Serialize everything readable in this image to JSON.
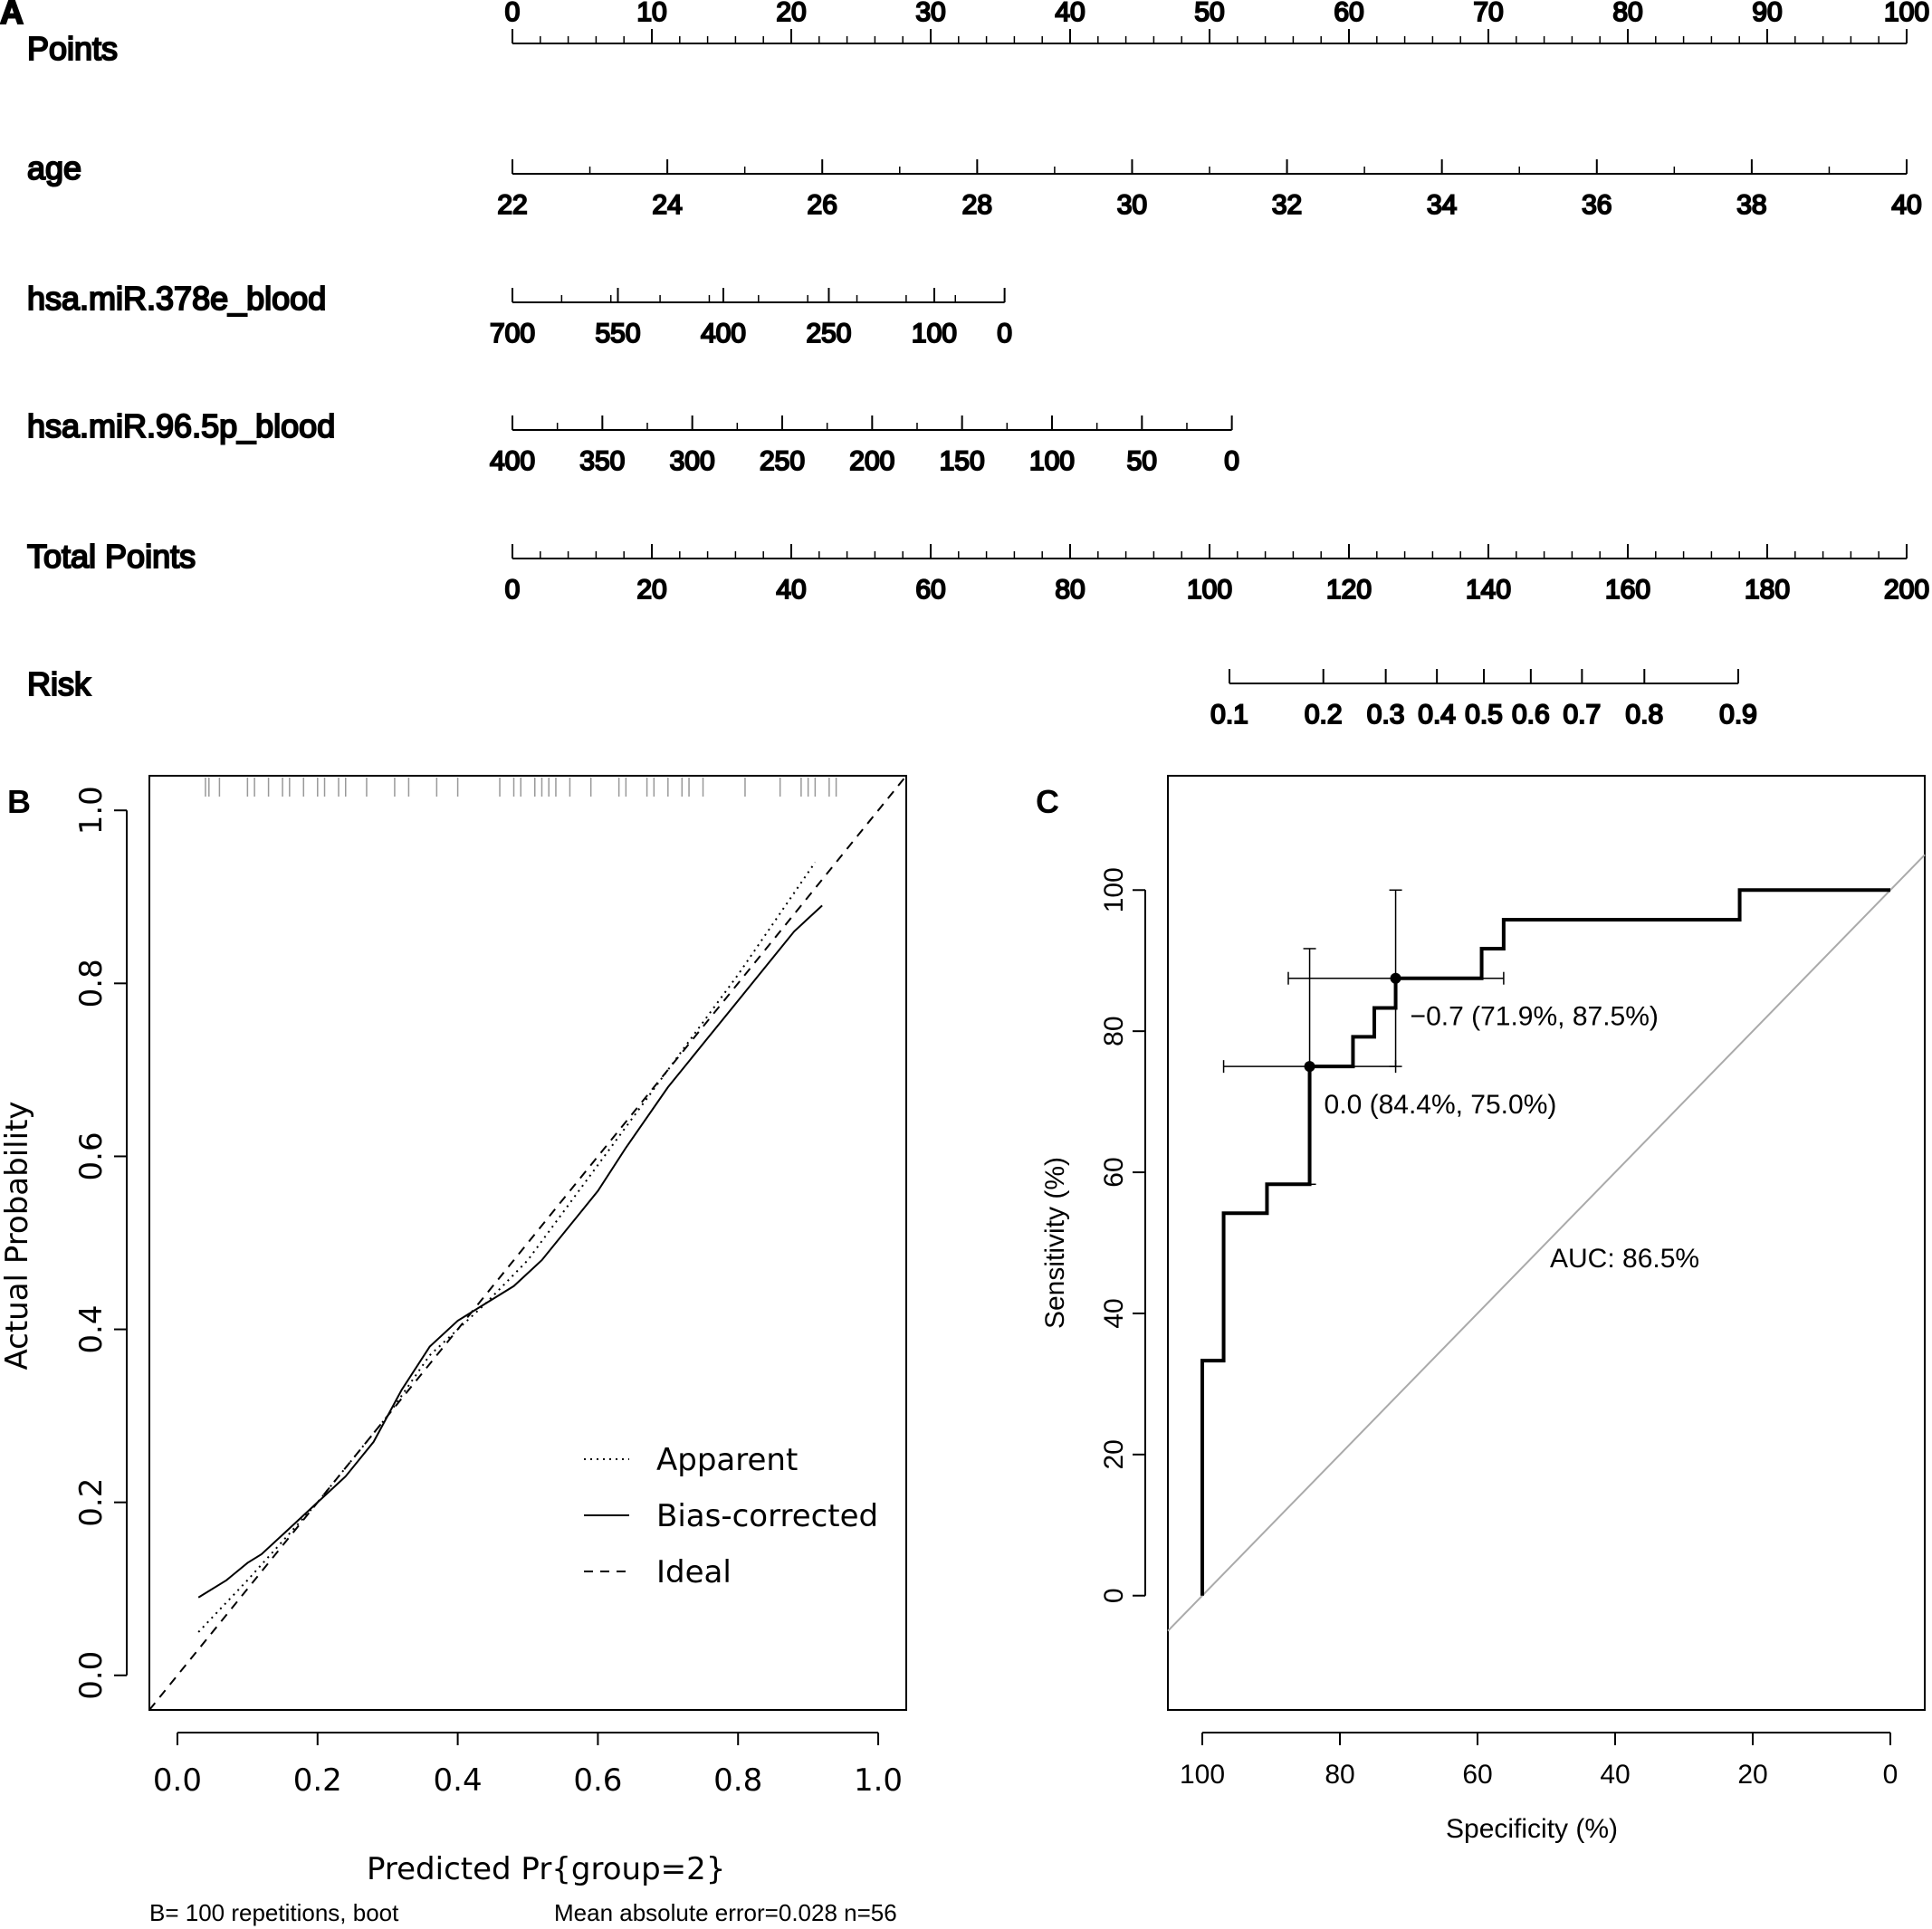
{
  "chart_data": [
    {
      "type": "nomogram",
      "panel_label": "A",
      "scales": [
        {
          "name": "Points",
          "ticks": [
            "0",
            "10",
            "20",
            "30",
            "40",
            "50",
            "60",
            "70",
            "80",
            "90",
            "100"
          ],
          "labels_above": true,
          "range": [
            0,
            100
          ]
        },
        {
          "name": "age",
          "ticks": [
            "22",
            "24",
            "26",
            "28",
            "30",
            "32",
            "34",
            "36",
            "38",
            "40"
          ],
          "range": [
            22,
            40
          ]
        },
        {
          "name": "hsa.miR.378e_blood",
          "ticks": [
            "700",
            "550",
            "400",
            "250",
            "100",
            "0"
          ],
          "range": [
            700,
            0
          ],
          "points_at_zero": 35.3
        },
        {
          "name": "hsa.miR.96.5p_blood",
          "ticks": [
            "400",
            "350",
            "300",
            "250",
            "200",
            "150",
            "100",
            "50",
            "0"
          ],
          "range": [
            400,
            0
          ],
          "points_at_zero": 51.6
        },
        {
          "name": "Total Points",
          "ticks": [
            "0",
            "20",
            "40",
            "60",
            "80",
            "100",
            "120",
            "140",
            "160",
            "180",
            "200"
          ],
          "range": [
            0,
            200
          ]
        },
        {
          "name": "Risk",
          "ticks": [
            "0.1",
            "0.2",
            "0.3",
            "0.4",
            "0.5",
            "0.6",
            "0.7",
            "0.8",
            "0.9"
          ],
          "range": [
            0.1,
            0.9
          ]
        }
      ]
    },
    {
      "type": "line",
      "panel_label": "B",
      "xlabel": "Predicted Pr{group=2}",
      "ylabel": "Actual Probability",
      "xlim": [
        -0.04,
        1.04
      ],
      "ylim": [
        -0.04,
        1.04
      ],
      "xticks": [
        "0.0",
        "0.2",
        "0.4",
        "0.6",
        "0.8",
        "1.0"
      ],
      "yticks": [
        "0.0",
        "0.2",
        "0.4",
        "0.6",
        "0.8",
        "1.0"
      ],
      "legend": [
        "Apparent",
        "Bias-corrected",
        "Ideal"
      ],
      "legend_position": "bottom-right",
      "series": [
        {
          "name": "Ideal",
          "style": "dashed",
          "x": [
            -0.04,
            1.04
          ],
          "y": [
            -0.04,
            1.04
          ]
        },
        {
          "name": "Apparent",
          "style": "dotted",
          "x": [
            0.03,
            0.1,
            0.2,
            0.3,
            0.36,
            0.44,
            0.5,
            0.6,
            0.7,
            0.8,
            0.91
          ],
          "y": [
            0.05,
            0.11,
            0.2,
            0.3,
            0.37,
            0.43,
            0.48,
            0.59,
            0.7,
            0.81,
            0.94
          ]
        },
        {
          "name": "Bias-corrected",
          "style": "solid",
          "x": [
            0.03,
            0.07,
            0.1,
            0.12,
            0.16,
            0.2,
            0.24,
            0.28,
            0.32,
            0.36,
            0.4,
            0.44,
            0.48,
            0.52,
            0.56,
            0.6,
            0.64,
            0.7,
            0.76,
            0.8,
            0.84,
            0.88,
            0.92
          ],
          "y": [
            0.09,
            0.11,
            0.13,
            0.14,
            0.17,
            0.2,
            0.23,
            0.27,
            0.33,
            0.38,
            0.41,
            0.43,
            0.45,
            0.48,
            0.52,
            0.56,
            0.61,
            0.68,
            0.74,
            0.78,
            0.82,
            0.86,
            0.89
          ]
        }
      ],
      "rug_x": [
        0.04,
        0.045,
        0.06,
        0.1,
        0.11,
        0.13,
        0.15,
        0.16,
        0.18,
        0.2,
        0.21,
        0.23,
        0.24,
        0.27,
        0.31,
        0.33,
        0.37,
        0.4,
        0.46,
        0.48,
        0.49,
        0.51,
        0.52,
        0.53,
        0.54,
        0.56,
        0.59,
        0.63,
        0.64,
        0.67,
        0.68,
        0.7,
        0.72,
        0.73,
        0.75,
        0.81,
        0.86,
        0.89,
        0.9,
        0.91,
        0.93,
        0.94
      ],
      "footer_left": "B= 100 repetitions, boot",
      "footer_right": "Mean absolute error=0.028 n=56"
    },
    {
      "type": "line",
      "panel_label": "C",
      "xlabel": "Specificity (%)",
      "ylabel": "Sensitivity (%)",
      "xlim": [
        105,
        -5
      ],
      "ylim": [
        -16.2,
        116.2
      ],
      "xticks": [
        "100",
        "80",
        "60",
        "40",
        "20",
        "0"
      ],
      "yticks": [
        "0",
        "20",
        "40",
        "60",
        "80",
        "100"
      ],
      "series": [
        {
          "name": "ROC",
          "style": "step",
          "x": [
            100,
            100,
            96.9,
            96.9,
            90.6,
            90.6,
            84.4,
            84.4,
            78.1,
            78.1,
            75,
            75,
            71.9,
            71.9,
            59.4,
            59.4,
            56.2,
            56.2,
            21.9,
            21.9,
            0
          ],
          "y": [
            0,
            33.3,
            33.3,
            54.2,
            54.2,
            58.3,
            58.3,
            75,
            75,
            79.2,
            79.2,
            83.3,
            83.3,
            87.5,
            87.5,
            91.7,
            91.7,
            95.8,
            95.8,
            100,
            100
          ]
        },
        {
          "name": "Reference",
          "style": "diagonal-grey",
          "x": [
            105,
            -5
          ],
          "y": [
            -5,
            105
          ]
        }
      ],
      "thresholds": [
        {
          "label": "-0.7 (71.9%, 87.5%)",
          "specificity": 71.9,
          "sensitivity": 87.5,
          "spec_ci": [
            87.5,
            56.2
          ],
          "sens_ci": [
            75,
            100
          ]
        },
        {
          "label": "0.0 (84.4%, 75.0%)",
          "specificity": 84.4,
          "sensitivity": 75.0,
          "spec_ci": [
            96.9,
            71.9
          ],
          "sens_ci": [
            58.3,
            91.7
          ]
        }
      ],
      "annotation": "AUC: 86.5%"
    }
  ]
}
